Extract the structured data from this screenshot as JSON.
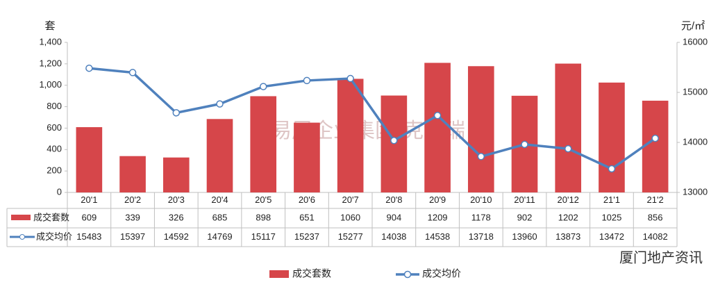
{
  "chart_data": {
    "type": "bar_line_table",
    "y_label": "套",
    "y2_label": "元/㎡",
    "categories": [
      "20'1",
      "20'2",
      "20'3",
      "20'4",
      "20'5",
      "20'6",
      "20'7",
      "20'8",
      "20'9",
      "20'10",
      "20'11",
      "20'12",
      "21'1",
      "21'2"
    ],
    "series": [
      {
        "name": "成交套数",
        "color": "#d6464a",
        "type": "bar",
        "values": [
          609,
          339,
          326,
          685,
          898,
          651,
          1060,
          904,
          1209,
          1178,
          902,
          1202,
          1025,
          856
        ]
      },
      {
        "name": "成交均价",
        "color": "#4f81bd",
        "type": "line",
        "axis": "y2",
        "values": [
          15483,
          15397,
          14592,
          14769,
          15117,
          15237,
          15277,
          14038,
          14538,
          13718,
          13960,
          13873,
          13472,
          14082
        ]
      }
    ],
    "ylim": [
      0,
      1400
    ],
    "yticks": [
      0,
      200,
      400,
      600,
      800,
      {
        "value": 1000,
        "label": "1,000"
      },
      {
        "value": 1200,
        "label": "1,200"
      },
      {
        "value": 1400,
        "label": "1,400"
      }
    ],
    "y2lim": [
      13000,
      16000
    ],
    "y2ticks": [
      13000,
      14000,
      15000,
      16000
    ],
    "watermark": "易居企业集团·克而瑞",
    "source": "厦门地产资讯"
  }
}
